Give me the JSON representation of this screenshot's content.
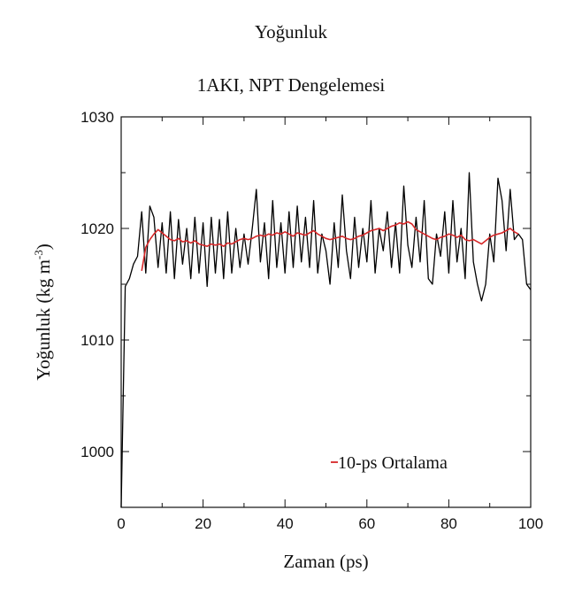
{
  "chart_data": {
    "type": "line",
    "title": "Yoğunluk",
    "subtitle": "1AKI, NPT Dengelemesi",
    "xlabel": "Zaman (ps)",
    "ylabel_main": "Yoğunluk (kg m",
    "ylabel_sup": "-3",
    "ylabel_close": ")",
    "xlim": [
      0,
      100
    ],
    "ylim": [
      995,
      1030
    ],
    "xticks": [
      "0",
      "20",
      "40",
      "60",
      "80",
      "100"
    ],
    "yticks": [
      "1000",
      "1010",
      "1020",
      "1030"
    ],
    "legend": {
      "label": "10-ps Ortalama",
      "position": "bottom-center"
    },
    "colors": {
      "raw": "#000000",
      "average": "#d62728"
    },
    "series": [
      {
        "role": "raw",
        "x": [
          0,
          1,
          2,
          3,
          4,
          5,
          6,
          7,
          8,
          9,
          10,
          11,
          12,
          13,
          14,
          15,
          16,
          17,
          18,
          19,
          20,
          21,
          22,
          23,
          24,
          25,
          26,
          27,
          28,
          29,
          30,
          31,
          32,
          33,
          34,
          35,
          36,
          37,
          38,
          39,
          40,
          41,
          42,
          43,
          44,
          45,
          46,
          47,
          48,
          49,
          50,
          51,
          52,
          53,
          54,
          55,
          56,
          57,
          58,
          59,
          60,
          61,
          62,
          63,
          64,
          65,
          66,
          67,
          68,
          69,
          70,
          71,
          72,
          73,
          74,
          75,
          76,
          77,
          78,
          79,
          80,
          81,
          82,
          83,
          84,
          85,
          86,
          87,
          88,
          89,
          90,
          91,
          92,
          93,
          94,
          95,
          96,
          97,
          98,
          99,
          100
        ],
        "y": [
          995.0,
          1014.8,
          1015.5,
          1016.8,
          1017.5,
          1021.5,
          1016.0,
          1022.0,
          1021.0,
          1016.5,
          1020.5,
          1016.0,
          1021.5,
          1015.5,
          1020.8,
          1016.8,
          1020.0,
          1015.5,
          1021.0,
          1016.0,
          1020.5,
          1014.8,
          1021.0,
          1016.0,
          1020.8,
          1015.5,
          1021.5,
          1016.0,
          1020.0,
          1016.5,
          1019.5,
          1016.8,
          1020.0,
          1023.5,
          1017.0,
          1020.5,
          1015.5,
          1022.5,
          1016.5,
          1020.5,
          1016.0,
          1021.5,
          1016.5,
          1022.0,
          1017.0,
          1021.0,
          1016.5,
          1022.5,
          1016.0,
          1019.5,
          1018.0,
          1015.0,
          1020.5,
          1016.5,
          1023.0,
          1018.0,
          1015.5,
          1021.0,
          1016.5,
          1020.0,
          1017.0,
          1022.5,
          1016.0,
          1020.0,
          1018.0,
          1021.5,
          1016.5,
          1020.5,
          1016.0,
          1023.8,
          1018.5,
          1016.5,
          1021.0,
          1017.0,
          1022.5,
          1015.5,
          1015.0,
          1019.5,
          1017.5,
          1021.5,
          1016.0,
          1022.5,
          1017.0,
          1020.0,
          1015.5,
          1025.0,
          1017.0,
          1015.0,
          1013.5,
          1015.0,
          1019.5,
          1017.0,
          1024.5,
          1022.5,
          1018.0,
          1023.5,
          1019.0,
          1019.5,
          1019.0,
          1015.0,
          1014.5
        ]
      },
      {
        "role": "average",
        "name": "10-ps Ortalama",
        "x": [
          5,
          6,
          7,
          8,
          9,
          10,
          11,
          12,
          13,
          14,
          15,
          16,
          17,
          18,
          19,
          20,
          21,
          22,
          23,
          24,
          25,
          26,
          27,
          28,
          29,
          30,
          31,
          32,
          33,
          34,
          35,
          36,
          37,
          38,
          39,
          40,
          41,
          42,
          43,
          44,
          45,
          46,
          47,
          48,
          49,
          50,
          51,
          52,
          53,
          54,
          55,
          56,
          57,
          58,
          59,
          60,
          61,
          62,
          63,
          64,
          65,
          66,
          67,
          68,
          69,
          70,
          71,
          72,
          73,
          74,
          75,
          76,
          77,
          78,
          79,
          80,
          81,
          82,
          83,
          84,
          85,
          86,
          87,
          88,
          89,
          90,
          91,
          92,
          93,
          94,
          95,
          96,
          97
        ],
        "y": [
          1016.2,
          1018.3,
          1019.0,
          1019.5,
          1019.9,
          1019.6,
          1019.3,
          1019.0,
          1018.9,
          1019.1,
          1018.8,
          1018.9,
          1018.7,
          1018.9,
          1018.6,
          1018.5,
          1018.4,
          1018.6,
          1018.5,
          1018.6,
          1018.4,
          1018.7,
          1018.6,
          1018.8,
          1019.0,
          1019.1,
          1019.0,
          1019.1,
          1019.3,
          1019.4,
          1019.3,
          1019.5,
          1019.4,
          1019.6,
          1019.5,
          1019.7,
          1019.5,
          1019.3,
          1019.6,
          1019.5,
          1019.4,
          1019.6,
          1019.8,
          1019.5,
          1019.3,
          1019.1,
          1019.0,
          1019.1,
          1019.2,
          1019.3,
          1019.1,
          1019.0,
          1019.1,
          1019.3,
          1019.4,
          1019.6,
          1019.8,
          1019.9,
          1020.0,
          1019.8,
          1020.0,
          1020.2,
          1020.3,
          1020.5,
          1020.4,
          1020.6,
          1020.4,
          1019.9,
          1019.7,
          1019.5,
          1019.3,
          1019.1,
          1019.0,
          1019.2,
          1019.3,
          1019.5,
          1019.4,
          1019.2,
          1019.4,
          1019.0,
          1018.9,
          1019.0,
          1018.8,
          1018.6,
          1018.9,
          1019.2,
          1019.4,
          1019.5,
          1019.6,
          1019.8,
          1020.0,
          1019.7,
          1019.5
        ]
      }
    ]
  }
}
